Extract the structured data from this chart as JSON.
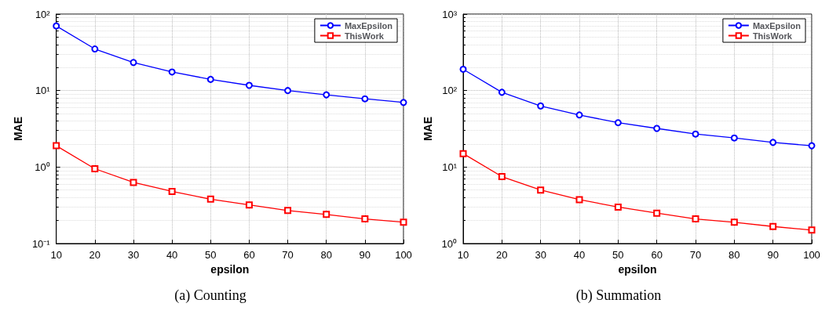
{
  "chart_data": [
    {
      "type": "line",
      "title": "(a) Counting",
      "xlabel": "epsilon",
      "ylabel": "MAE",
      "x": [
        10,
        20,
        30,
        40,
        50,
        60,
        70,
        80,
        90,
        100
      ],
      "xlim": [
        10,
        100
      ],
      "xticks": [
        10,
        20,
        30,
        40,
        50,
        60,
        70,
        80,
        90,
        100
      ],
      "log": "y",
      "ylim": [
        0.1,
        100
      ],
      "yticks": [
        {
          "value": 0.1,
          "label": "10⁻¹"
        },
        {
          "value": 1,
          "label": "10⁰"
        },
        {
          "value": 10,
          "label": "10¹"
        },
        {
          "value": 100,
          "label": "10²"
        }
      ],
      "grid": true,
      "legend": "top right",
      "series": [
        {
          "name": "MaxEpsilon",
          "color": "#0000ff",
          "marker": "circle",
          "values": [
            70,
            35,
            23.3,
            17.5,
            14,
            11.7,
            10,
            8.8,
            7.8,
            7
          ]
        },
        {
          "name": "ThisWork",
          "color": "#ff0000",
          "marker": "square",
          "values": [
            1.9,
            0.95,
            0.63,
            0.48,
            0.38,
            0.32,
            0.27,
            0.24,
            0.21,
            0.19
          ]
        }
      ]
    },
    {
      "type": "line",
      "title": "(b) Summation",
      "xlabel": "epsilon",
      "ylabel": "MAE",
      "x": [
        10,
        20,
        30,
        40,
        50,
        60,
        70,
        80,
        90,
        100
      ],
      "xlim": [
        10,
        100
      ],
      "xticks": [
        10,
        20,
        30,
        40,
        50,
        60,
        70,
        80,
        90,
        100
      ],
      "log": "y",
      "ylim": [
        1,
        1000
      ],
      "yticks": [
        {
          "value": 1,
          "label": "10⁰"
        },
        {
          "value": 10,
          "label": "10¹"
        },
        {
          "value": 100,
          "label": "10²"
        },
        {
          "value": 1000,
          "label": "10³"
        }
      ],
      "grid": true,
      "legend": "top right",
      "series": [
        {
          "name": "MaxEpsilon",
          "color": "#0000ff",
          "marker": "circle",
          "values": [
            190,
            95,
            63,
            48,
            38,
            32,
            27,
            24,
            21,
            19
          ]
        },
        {
          "name": "ThisWork",
          "color": "#ff0000",
          "marker": "square",
          "values": [
            15,
            7.5,
            5,
            3.75,
            3,
            2.5,
            2.1,
            1.9,
            1.67,
            1.5
          ]
        }
      ]
    }
  ]
}
